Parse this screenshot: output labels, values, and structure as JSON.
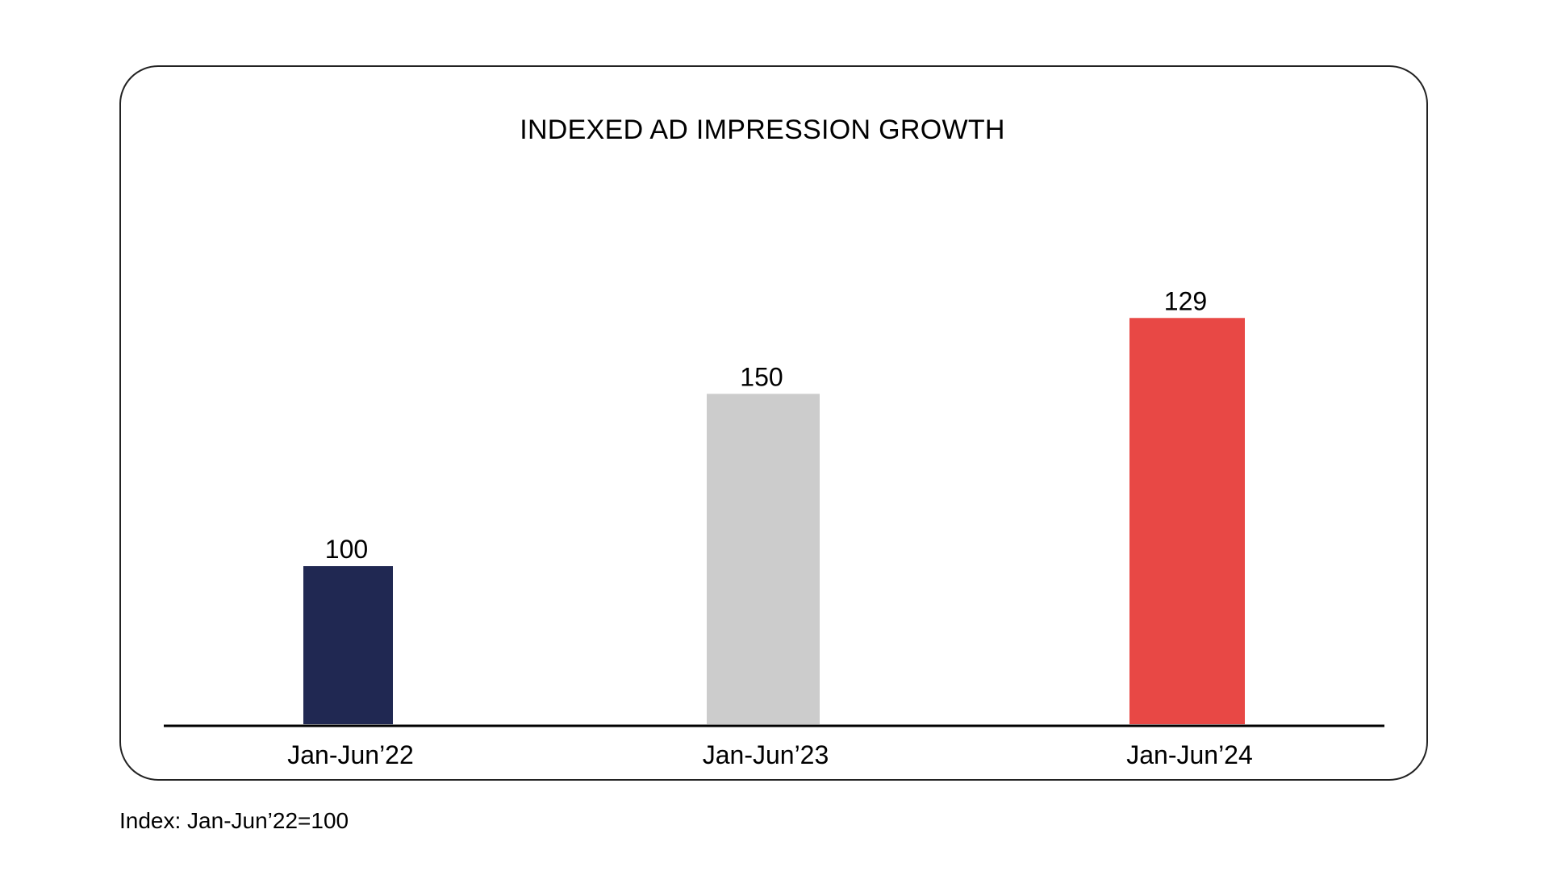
{
  "chart_data": {
    "type": "bar",
    "title": "INDEXED AD IMPRESSION GROWTH",
    "categories": [
      "Jan-Jun’22",
      "Jan-Jun’23",
      "Jan-Jun’24"
    ],
    "values": [
      100,
      150,
      129
    ],
    "bar_levels": [
      100,
      209,
      257
    ],
    "colors": [
      "#202852",
      "#cccccc",
      "#e84845"
    ],
    "xlabel": "",
    "ylabel": "",
    "grid": false,
    "legend": "none",
    "footnote": "Index: Jan-Jun’22=100"
  }
}
